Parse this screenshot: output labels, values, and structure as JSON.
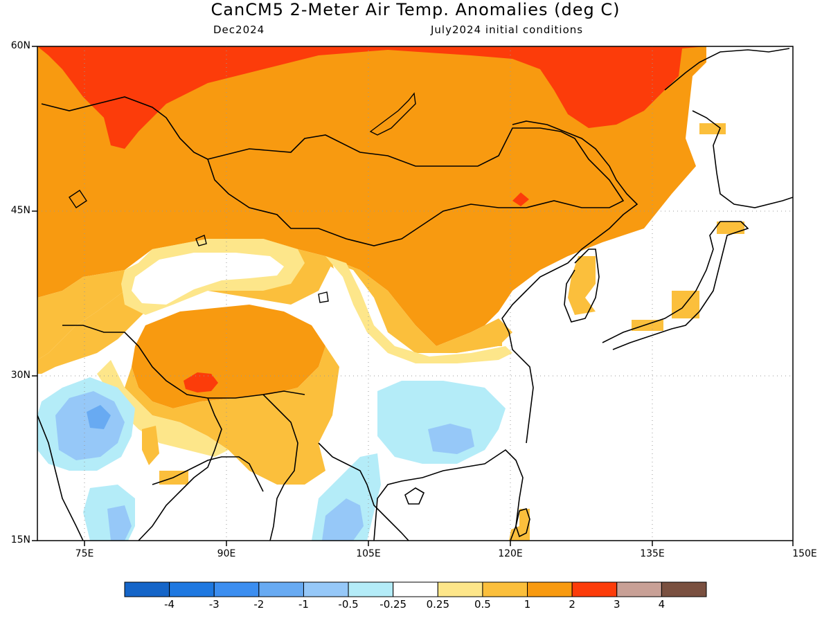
{
  "header": {
    "title": "CanCM5 2-Meter Air Temp. Anomalies (deg C)",
    "valid_period": "Dec2024",
    "init_conditions": "July2024 initial conditions"
  },
  "map": {
    "region": "East Asia",
    "lon_range": [
      70,
      150
    ],
    "lat_range": [
      15,
      60
    ],
    "lat_labels": [
      "60N",
      "45N",
      "30N",
      "15N"
    ],
    "lon_labels": [
      "75E",
      "90E",
      "105E",
      "120E",
      "135E",
      "150E"
    ]
  },
  "colorbar": {
    "labels": [
      "-4",
      "-3",
      "-2",
      "-1",
      "-0.5",
      "-0.25",
      "0.25",
      "0.5",
      "1",
      "2",
      "3",
      "4"
    ],
    "colors": [
      "#1565c8",
      "#1e78e0",
      "#3c8ef0",
      "#68aaf2",
      "#96c8f8",
      "#b4ecf8",
      "#ffffff",
      "#fde68a",
      "#fbbf3c",
      "#f89a10",
      "#fc3c0a",
      "#c8a096",
      "#7a5040"
    ]
  }
}
